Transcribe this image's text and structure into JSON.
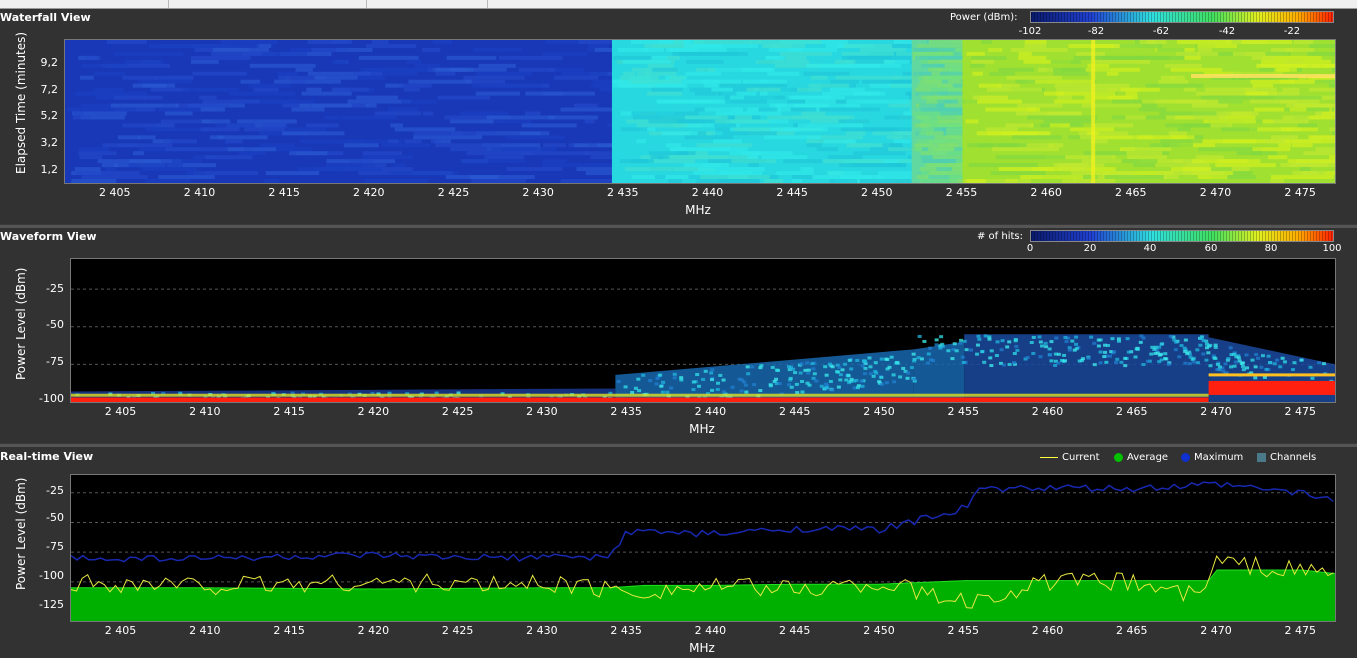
{
  "colors": {
    "background": "#3a3a3a",
    "plot_background": "#000000",
    "current": "#e8e840",
    "average": "#00c000",
    "maximum": "#1020a0",
    "channels": "#4a7a8a"
  },
  "waterfall": {
    "title": "Waterfall View",
    "legend_label": "Power (dBm):",
    "colorbar_ticks": [
      "-102",
      "-82",
      "-62",
      "-42",
      "-22"
    ],
    "ylabel": "Elapsed Time (minutes)",
    "yticks": [
      "9,2",
      "7,2",
      "5,2",
      "3,2",
      "1,2"
    ],
    "xlabel": "MHz"
  },
  "waveform": {
    "title": "Waveform View",
    "legend_label": "# of hits:",
    "colorbar_ticks": [
      "0",
      "20",
      "40",
      "60",
      "80",
      "100"
    ],
    "ylabel": "Power Level (dBm)",
    "yticks": [
      "-25",
      "-50",
      "-75",
      "-100"
    ],
    "xlabel": "MHz"
  },
  "realtime": {
    "title": "Real-time View",
    "legend": [
      "Current",
      "Average",
      "Maximum",
      "Channels"
    ],
    "ylabel": "Power Level (dBm)",
    "yticks": [
      "-25",
      "-50",
      "-75",
      "-100",
      "-125"
    ],
    "xlabel": "MHz"
  },
  "xticks": [
    "2 405",
    "2 410",
    "2 415",
    "2 420",
    "2 425",
    "2 430",
    "2 435",
    "2 440",
    "2 445",
    "2 450",
    "2 455",
    "2 460",
    "2 465",
    "2 470",
    "2 475"
  ],
  "chart_data": [
    {
      "type": "heatmap",
      "title": "Waterfall View",
      "xlabel": "MHz",
      "ylabel": "Elapsed Time (minutes)",
      "xlim": [
        2402,
        2477
      ],
      "ylim": [
        0,
        10.5
      ],
      "colorbar": {
        "label": "Power (dBm):",
        "ticks": [
          -102,
          -82,
          -62,
          -42,
          -22
        ]
      },
      "band_levels": [
        {
          "from": 2402,
          "to": 2434.3,
          "power": -100
        },
        {
          "from": 2434.3,
          "to": 2452,
          "power": -85
        },
        {
          "from": 2452,
          "to": 2455,
          "power": -75
        },
        {
          "from": 2455,
          "to": 2477,
          "power": -62
        }
      ]
    },
    {
      "type": "heatmap",
      "title": "Waveform View",
      "xlabel": "MHz",
      "ylabel": "Power Level (dBm)",
      "xlim": [
        2402,
        2477
      ],
      "ylim": [
        -100,
        -5
      ],
      "colorbar": {
        "label": "# of hits:",
        "ticks": [
          0,
          20,
          40,
          60,
          80,
          100
        ]
      }
    },
    {
      "type": "line",
      "title": "Real-time View",
      "xlabel": "MHz",
      "ylabel": "Power Level (dBm)",
      "xlim": [
        2402,
        2477
      ],
      "ylim": [
        -133,
        -10
      ],
      "series": [
        {
          "name": "Maximum",
          "x": [
            2402,
            2410,
            2420,
            2425,
            2434,
            2435,
            2440,
            2445,
            2450,
            2452,
            2455,
            2456,
            2460,
            2465,
            2470,
            2475,
            2477
          ],
          "values": [
            -80,
            -80,
            -78,
            -80,
            -79,
            -57,
            -60,
            -55,
            -56,
            -49,
            -38,
            -22,
            -21,
            -22,
            -18,
            -25,
            -32
          ]
        },
        {
          "name": "Average",
          "x": [
            2402,
            2410,
            2420,
            2430,
            2434,
            2436,
            2440,
            2445,
            2450,
            2455,
            2460,
            2465,
            2469.5,
            2470,
            2475,
            2477
          ],
          "values": [
            -105,
            -105,
            -106,
            -105,
            -105,
            -103,
            -103,
            -102,
            -102,
            -99,
            -99,
            -99,
            -99,
            -90,
            -90,
            -93
          ]
        },
        {
          "name": "Current",
          "x": [
            2402,
            2410,
            2420,
            2428,
            2430,
            2435,
            2440,
            2445,
            2450,
            2455,
            2460,
            2465,
            2469,
            2470,
            2473,
            2477
          ],
          "values": [
            -100,
            -103,
            -100,
            -103,
            -100,
            -108,
            -104,
            -106,
            -101,
            -118,
            -100,
            -100,
            -112,
            -82,
            -88,
            -93
          ]
        }
      ]
    }
  ]
}
